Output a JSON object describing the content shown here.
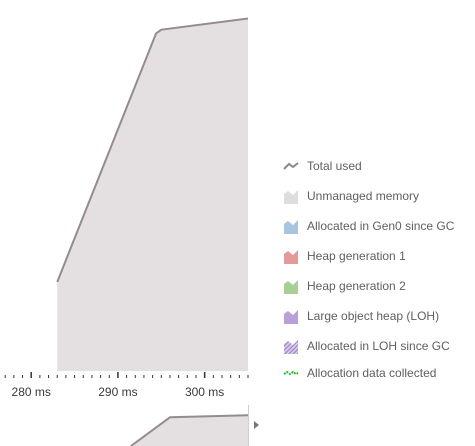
{
  "colors": {
    "area_fill": "#e4e0e1",
    "line": "#958b8e",
    "axis": "#333333",
    "legend_text": "#5f5f5f"
  },
  "chart_data": {
    "type": "area",
    "title": "",
    "xlabel": "",
    "ylabel": "",
    "x_unit": "ms",
    "xlim": [
      276.4,
      305
    ],
    "ticks": [
      {
        "value": 280,
        "label": "280 ms"
      },
      {
        "value": 290,
        "label": "290 ms"
      },
      {
        "value": 300,
        "label": "300 ms"
      }
    ],
    "series": [
      {
        "name": "Total used",
        "x": [
          283,
          294.4,
          295,
          305
        ],
        "y": [
          0.24,
          0.91,
          0.92,
          0.95
        ]
      }
    ]
  },
  "overview": {
    "x": [
      291.5,
      296,
      305
    ],
    "y": [
      0.0,
      0.7,
      0.75
    ]
  },
  "legend": [
    {
      "label": "Total used",
      "icon": "line-icon",
      "color": "#8a8a8a"
    },
    {
      "label": "Unmanaged memory",
      "icon": "area-icon",
      "color": "#dedede"
    },
    {
      "label": "Allocated in Gen0 since GC",
      "icon": "area-icon",
      "color": "#a8c4e0"
    },
    {
      "label": "Heap generation 1",
      "icon": "area-icon",
      "color": "#e39a9a"
    },
    {
      "label": "Heap generation 2",
      "icon": "area-icon",
      "color": "#a8cf96"
    },
    {
      "label": "Large object heap (LOH)",
      "icon": "area-icon",
      "color": "#b8a1d9"
    },
    {
      "label": "Allocated in LOH since GC",
      "icon": "hatched-area-icon",
      "color": "#9a7fc5"
    },
    {
      "label": "Allocation data collected",
      "icon": "dashed-line-icon",
      "color": "#2ebd2e"
    }
  ]
}
